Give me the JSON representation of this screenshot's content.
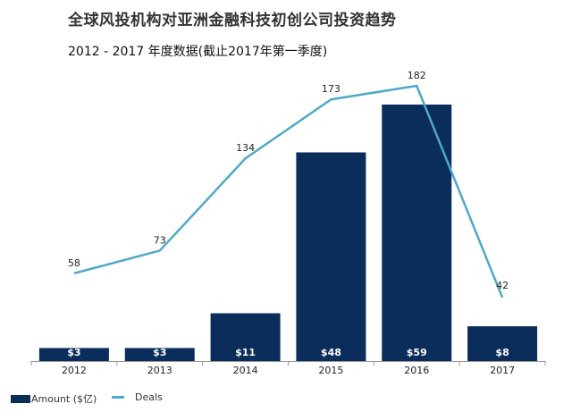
{
  "chart_data": {
    "type": "bar",
    "title": "全球风投机构对亚洲金融科技初创公司投资趋势",
    "subtitle": "2012 - 2017 年度数据(截止2017年第一季度)",
    "categories": [
      "2012",
      "2013",
      "2014",
      "2015",
      "2016",
      "2017"
    ],
    "series": [
      {
        "name": "Amount ($亿)",
        "type": "bar",
        "values": [
          3,
          3,
          11,
          48,
          59,
          8
        ],
        "labels": [
          "$3",
          "$3",
          "$11",
          "$48",
          "$59",
          "$8"
        ],
        "color": "#0b2d5c"
      },
      {
        "name": "Deals",
        "type": "line",
        "values": [
          58,
          73,
          134,
          173,
          182,
          42
        ],
        "labels": [
          "58",
          "73",
          "134",
          "173",
          "182",
          "42"
        ],
        "color": "#4fa8c8"
      }
    ],
    "bar_ylim": [
      0,
      59
    ],
    "line_ylim": [
      0,
      182
    ],
    "grid": false,
    "legend_position": "bottom-left"
  },
  "colors": {
    "axis": "#999999",
    "bar_label": "#ffffff",
    "line_label": "#222222"
  }
}
